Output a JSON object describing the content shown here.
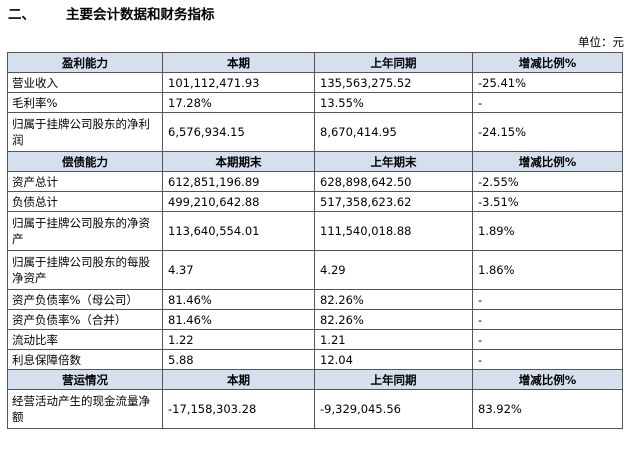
{
  "heading": {
    "number": "二、",
    "title": "主要会计数据和财务指标"
  },
  "unit": "单位：元",
  "sections": [
    {
      "headers": [
        "盈利能力",
        "本期",
        "上年同期",
        "增减比例%"
      ],
      "rows": [
        [
          "营业收入",
          "101,112,471.93",
          "135,563,275.52",
          "-25.41%"
        ],
        [
          "毛利率%",
          "17.28%",
          "13.55%",
          "-"
        ],
        [
          "归属于挂牌公司股东的净利润",
          "6,576,934.15",
          "8,670,414.95",
          "-24.15%"
        ]
      ]
    },
    {
      "headers": [
        "偿债能力",
        "本期期末",
        "上年期末",
        "增减比例%"
      ],
      "rows": [
        [
          "资产总计",
          "612,851,196.89",
          "628,898,642.50",
          "-2.55%"
        ],
        [
          "负债总计",
          "499,210,642.88",
          "517,358,623.62",
          "-3.51%"
        ],
        [
          "归属于挂牌公司股东的净资产",
          "113,640,554.01",
          "111,540,018.88",
          "1.89%"
        ],
        [
          "归属于挂牌公司股东的每股净资产",
          "4.37",
          "4.29",
          "1.86%"
        ],
        [
          "资产负债率%（母公司）",
          "81.46%",
          "82.26%",
          "-"
        ],
        [
          "资产负债率%（合并）",
          "81.46%",
          "82.26%",
          "-"
        ],
        [
          "流动比率",
          "1.22",
          "1.21",
          "-"
        ],
        [
          "利息保障倍数",
          "5.88",
          "12.04",
          "-"
        ]
      ]
    },
    {
      "headers": [
        "营运情况",
        "本期",
        "上年同期",
        "增减比例%"
      ],
      "rows": [
        [
          "经营活动产生的现金流量净额",
          "-17,158,303.28",
          "-9,329,045.56",
          "83.92%"
        ]
      ]
    }
  ]
}
